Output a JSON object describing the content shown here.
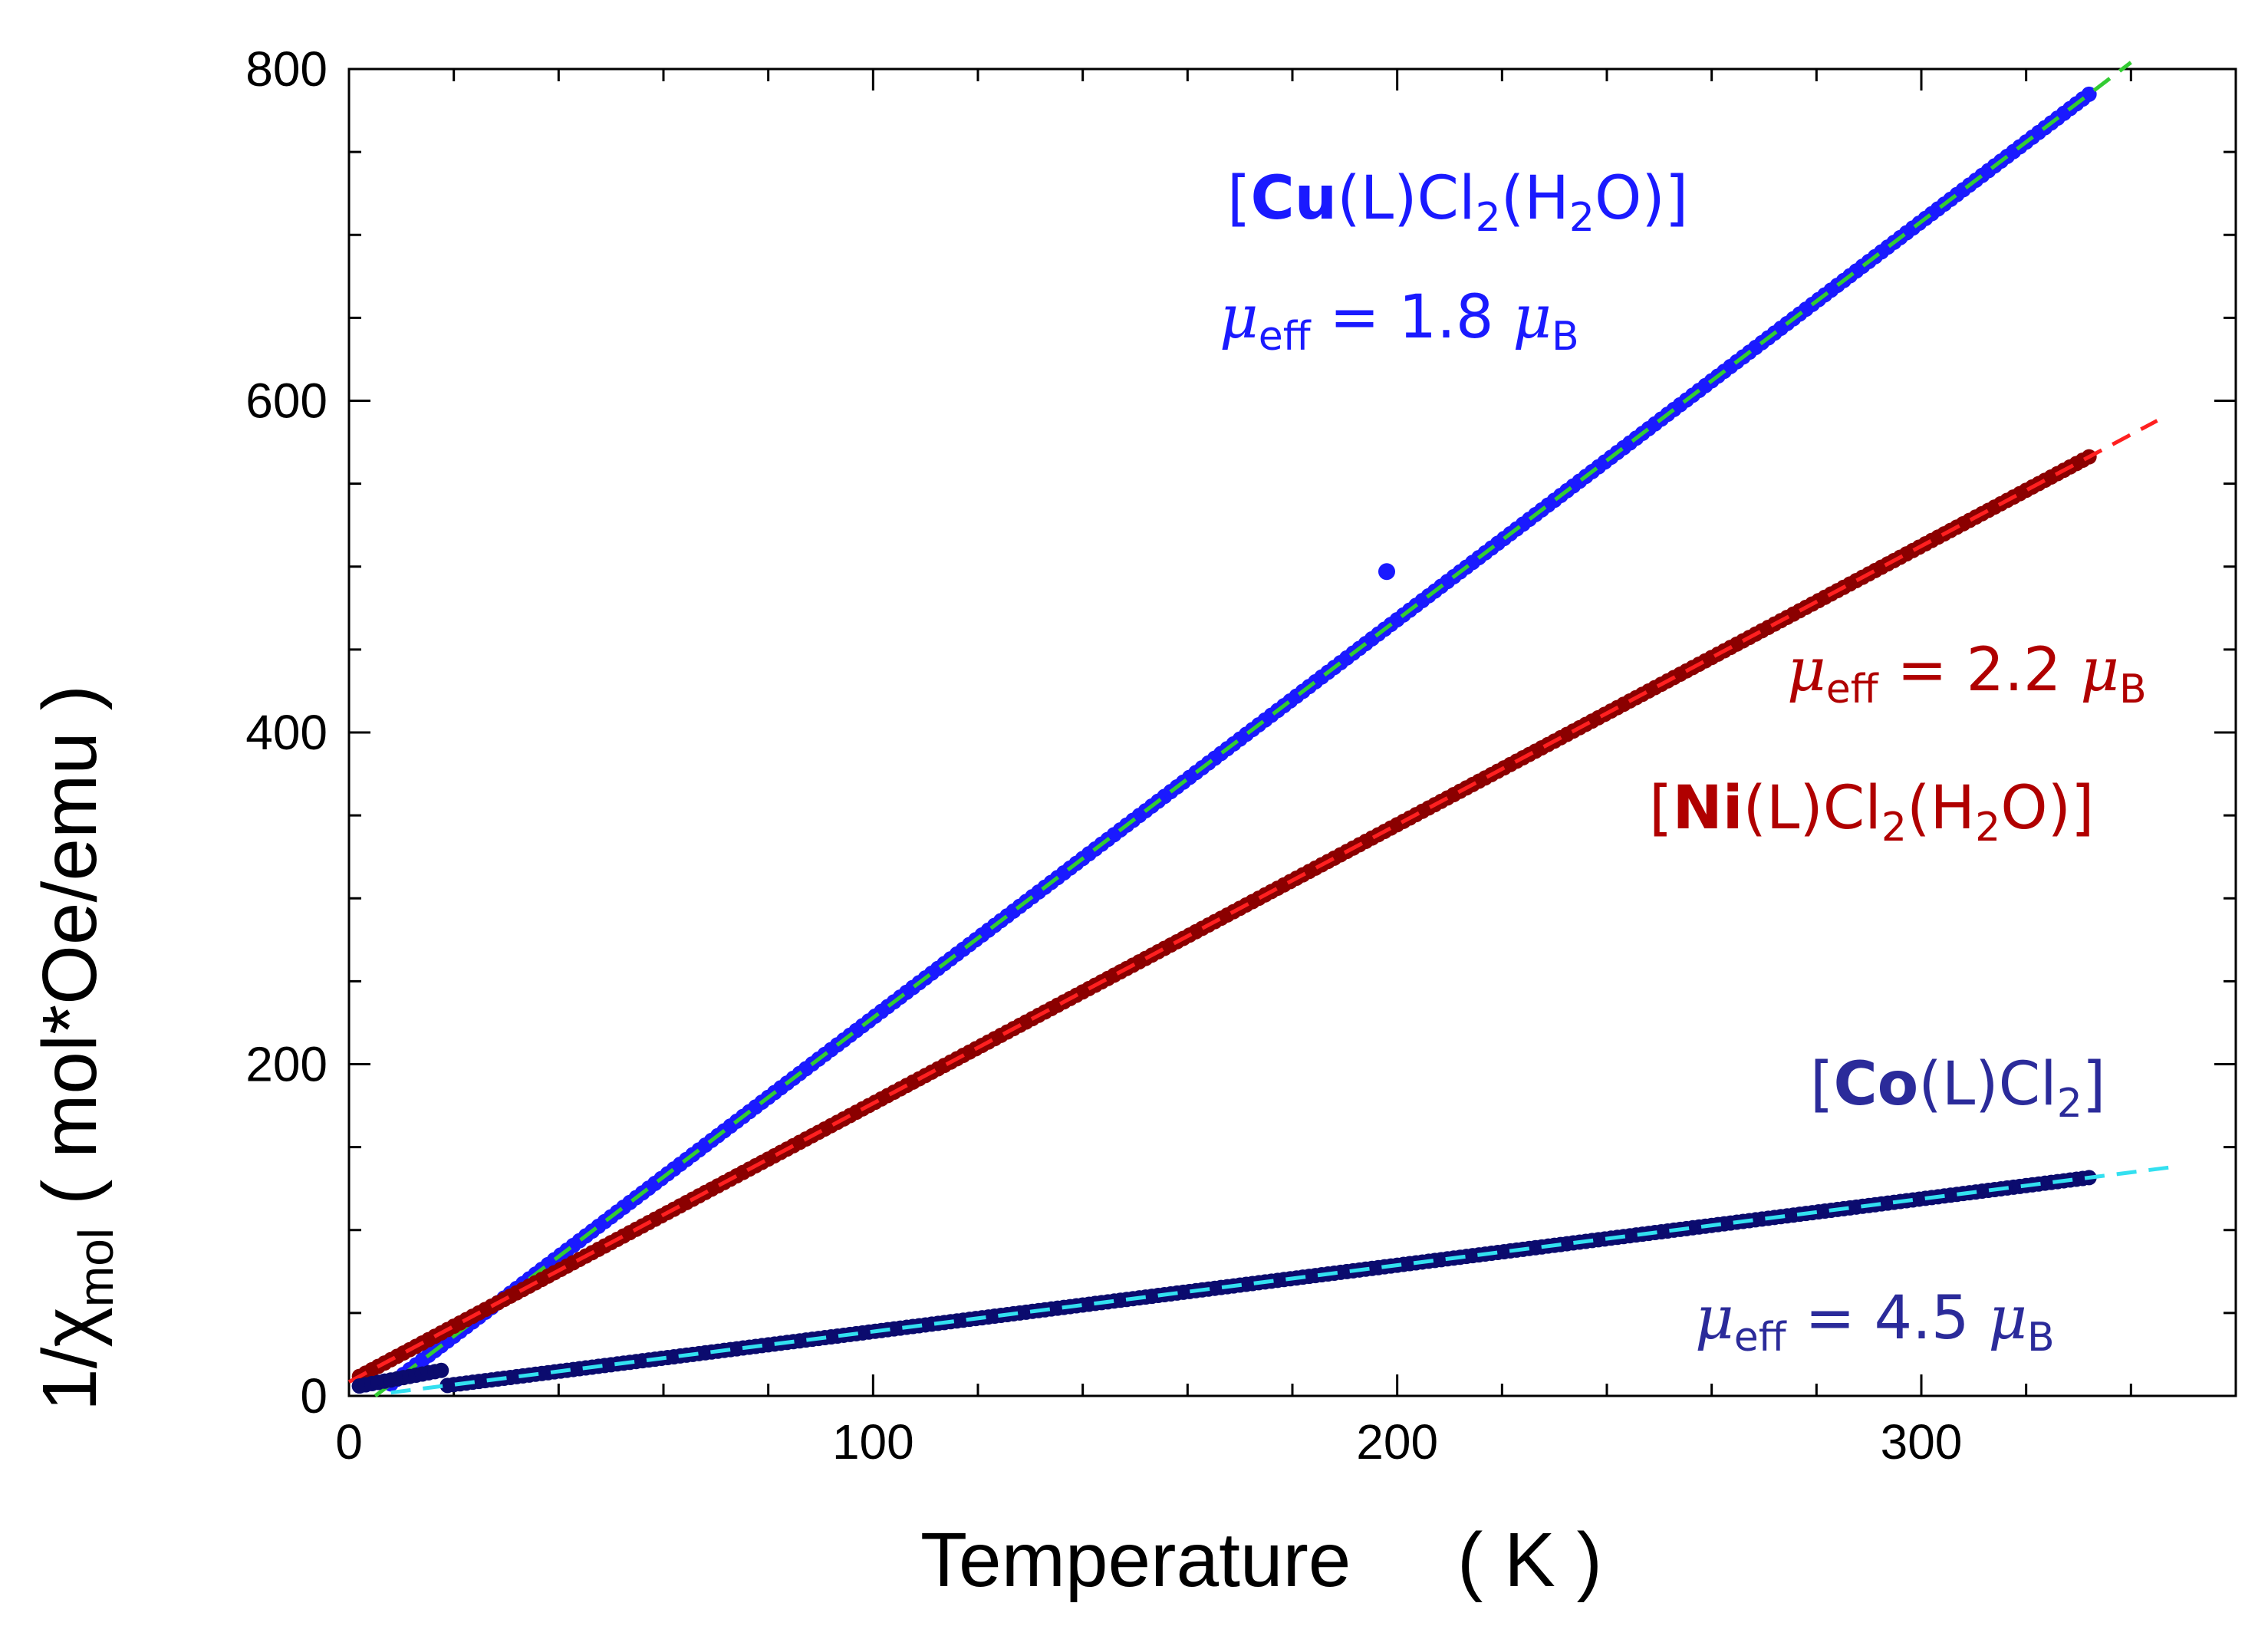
{
  "chart_data": {
    "type": "scatter",
    "xlabel": "Temperature",
    "xunit": "( K )",
    "ylabel_prefix": "1/χ",
    "ylabel_sub": "mol",
    "ylabel_unit": "( mol*Oe/emu )",
    "xlim": [
      0,
      360
    ],
    "ylim": [
      0,
      800
    ],
    "xticks": [
      0,
      100,
      200,
      300
    ],
    "yticks": [
      0,
      200,
      400,
      600,
      800
    ],
    "x_minor_step": 20,
    "y_minor_step": 50,
    "series": [
      {
        "id": "cu",
        "label": "[Cu(L)Cl2(H2O)]",
        "label_parts": {
          "open": "[",
          "metal": "Cu",
          "mid": "(L)Cl",
          "sub1": "2",
          "mid2": "(H",
          "sub2": "2",
          "close": "O)]"
        },
        "mu_symbol": "μ",
        "mu_sub": "eff",
        "mu_text": " = 1.8 ",
        "mu_unit": "μ",
        "mu_unit_sub": "B",
        "marker_color": "#1a1aff",
        "fit_color": "#33cc33",
        "label_color": "#1a1aff",
        "x_range": [
          2,
          333
        ],
        "fit_x_range": [
          5,
          340
        ],
        "theta": 5,
        "slope": 2.4,
        "outlier_points": [
          [
            198,
            497
          ]
        ]
      },
      {
        "id": "ni",
        "label": "[Ni(L)Cl2(H2O)]",
        "label_parts": {
          "open": "[",
          "metal": "Ni",
          "mid": "(L)Cl",
          "sub1": "2",
          "mid2": "(H",
          "sub2": "2",
          "close": "O)]"
        },
        "mu_symbol": "μ",
        "mu_sub": "eff",
        "mu_text": " = 2.2 ",
        "mu_unit": "μ",
        "mu_unit_sub": "B",
        "marker_color": "#8b0000",
        "fit_color": "#ff2020",
        "label_color": "#b00000",
        "x_range": [
          2,
          333
        ],
        "fit_x_range": [
          0,
          345
        ],
        "theta": -5,
        "slope": 1.68,
        "outlier_points": []
      },
      {
        "id": "co",
        "label": "[Co(L)Cl2]",
        "label_parts": {
          "open": "[",
          "metal": "Co",
          "mid": "(L)Cl",
          "sub1": "2",
          "mid2": "",
          "sub2": "",
          "close": "]"
        },
        "mu_symbol": "μ",
        "mu_sub": "eff",
        "mu_text": " = 4.5 ",
        "mu_unit": "μ",
        "mu_unit_sub": "B",
        "marker_color": "#0b0b6e",
        "fit_color": "#33e0f0",
        "label_color": "#2b2b9a",
        "x_range": [
          2,
          333
        ],
        "fit_x_range": [
          8,
          348
        ],
        "theta": 3,
        "slope": 0.4,
        "outlier_points": []
      }
    ]
  }
}
